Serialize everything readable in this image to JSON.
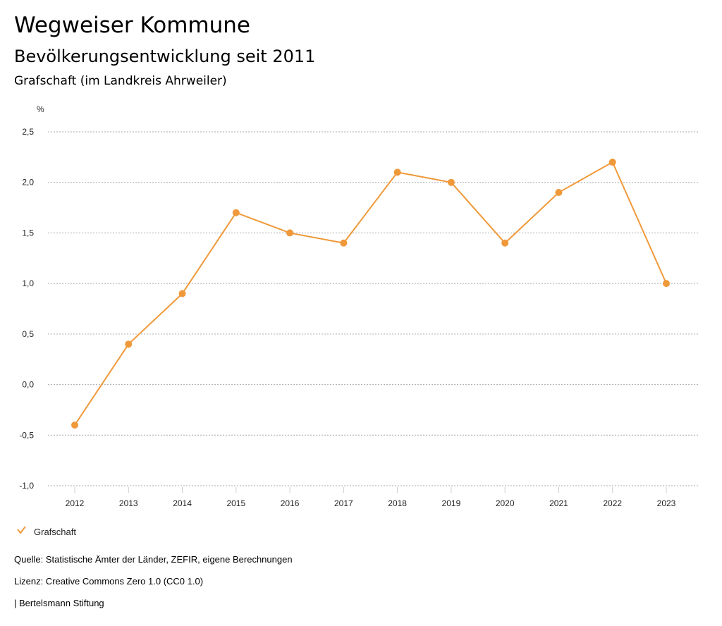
{
  "header": {
    "title": "Wegweiser Kommune",
    "subtitle": "Bevölkerungsentwicklung seit 2011",
    "region": "Grafschaft (im Landkreis Ahrweiler)"
  },
  "chart_data": {
    "type": "line",
    "title": "Bevölkerungsentwicklung seit 2011",
    "ylabel": "%",
    "xlabel": "",
    "ylim": [
      -1.0,
      2.5
    ],
    "yticks": [
      "2,5",
      "2,0",
      "1,5",
      "1,0",
      "0,5",
      "0,0",
      "-0,5",
      "-1,0"
    ],
    "ytick_values": [
      2.5,
      2.0,
      1.5,
      1.0,
      0.5,
      0.0,
      -0.5,
      -1.0
    ],
    "categories": [
      "2012",
      "2013",
      "2014",
      "2015",
      "2016",
      "2017",
      "2018",
      "2019",
      "2020",
      "2021",
      "2022",
      "2023"
    ],
    "series": [
      {
        "name": "Grafschaft",
        "color": "#f0993a",
        "values": [
          -0.4,
          0.4,
          0.9,
          1.7,
          1.5,
          1.4,
          2.1,
          2.0,
          1.4,
          1.9,
          2.2,
          1.0
        ]
      }
    ],
    "grid": true,
    "legend": "bottom-left"
  },
  "footer": {
    "source": "Quelle: Statistische Ämter der Länder, ZEFIR, eigene Berechnungen",
    "license": "Lizenz: Creative Commons Zero 1.0 (CC0 1.0)",
    "publisher": "| Bertelsmann Stiftung"
  }
}
